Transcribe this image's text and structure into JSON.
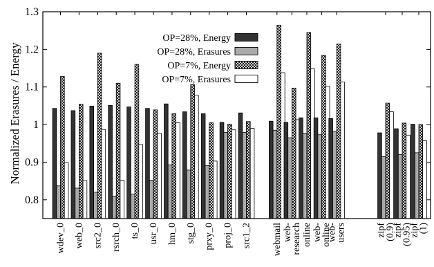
{
  "chart_data": {
    "type": "bar",
    "title": "",
    "xlabel": "",
    "ylabel": "Normalized Erasures / Energy",
    "ylim": [
      0.75,
      1.3
    ],
    "yticks": [
      0.8,
      0.9,
      1,
      1.1,
      1.2,
      1.3
    ],
    "ytick_labels": [
      "0.8",
      "0.9",
      "1",
      "1.1",
      "1.2",
      "1.3"
    ],
    "grid": false,
    "legend_position": "top-center",
    "categories": [
      "wdev_0",
      "web_0",
      "src2_0",
      "rsrch_0",
      "ts_0",
      "usr_0",
      "hm_0",
      "stg_0",
      "prxy_0",
      "proj_0",
      "src1_2",
      "webmail",
      "web-research",
      "online",
      "web-online",
      "web-users",
      "zipf (0.9)",
      "zipf (0.95)",
      "zipf (1)"
    ],
    "category_labels": [
      [
        "wdev_0"
      ],
      [
        "web_0"
      ],
      [
        "src2_0"
      ],
      [
        "rsrch_0"
      ],
      [
        "ts_0"
      ],
      [
        "usr_0"
      ],
      [
        "hm_0"
      ],
      [
        "stg_0"
      ],
      [
        "prxy_0"
      ],
      [
        "proj_0"
      ],
      [
        "src1_2"
      ],
      [
        "webmail"
      ],
      [
        "web-",
        "research"
      ],
      [
        "online"
      ],
      [
        "web-",
        "online"
      ],
      [
        "web-",
        "users"
      ],
      [
        "zipf",
        "(0.9)"
      ],
      [
        "zipf",
        "(0.95)"
      ],
      [
        "zipf",
        "(1)"
      ]
    ],
    "series": [
      {
        "name": "OP=28%, Energy",
        "color": "#333333",
        "pattern": "solid",
        "values": [
          1.043,
          1.037,
          1.049,
          1.051,
          1.047,
          1.043,
          1.055,
          1.034,
          1.029,
          1.006,
          1.031,
          1.009,
          1.006,
          1.018,
          1.018,
          1.016,
          0.978,
          0.989,
          1.001
        ]
      },
      {
        "name": "OP=28%, Erasures",
        "color": "#aaaaaa",
        "pattern": "solid",
        "values": [
          0.837,
          0.831,
          0.82,
          0.81,
          0.815,
          0.852,
          0.893,
          0.879,
          0.891,
          0.979,
          0.979,
          0.985,
          0.965,
          0.977,
          0.973,
          0.982,
          0.915,
          0.92,
          0.925
        ]
      },
      {
        "name": "OP=7%, Energy",
        "color": "#ffffff",
        "pattern": "crosshatch",
        "values": [
          1.128,
          1.054,
          1.19,
          1.11,
          1.16,
          1.039,
          1.029,
          1.106,
          1.005,
          1.001,
          1.008,
          1.264,
          1.097,
          1.245,
          1.184,
          1.214,
          1.057,
          1.004,
          1.0
        ]
      },
      {
        "name": "OP=7%, Erasures",
        "color": "#ffffff",
        "pattern": "solid",
        "values": [
          0.899,
          0.851,
          0.987,
          0.852,
          0.947,
          0.977,
          1.005,
          1.078,
          0.903,
          0.986,
          0.99,
          1.138,
          1.013,
          1.148,
          1.102,
          1.113,
          1.034,
          0.972,
          0.957
        ]
      }
    ]
  }
}
